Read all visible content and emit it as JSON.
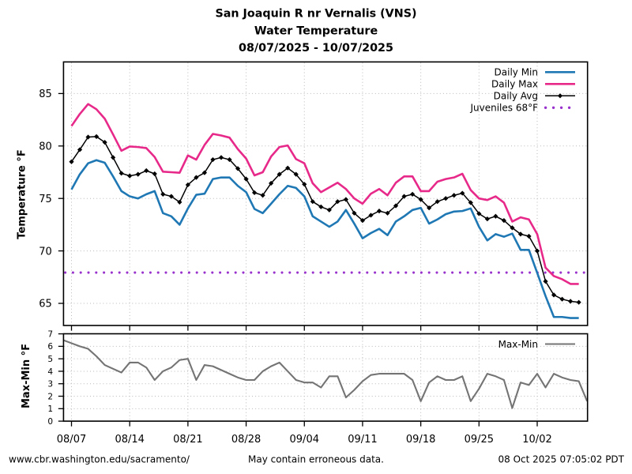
{
  "title": {
    "line1": "San Joaquin R nr Vernalis (VNS)",
    "line2": "Water Temperature",
    "line3": "08/07/2025 - 10/07/2025"
  },
  "footer": {
    "left": "www.cbr.washington.edu/sacramento/",
    "center": "May contain erroneous data.",
    "right": "08 Oct 2025 07:05:02 PDT"
  },
  "colors": {
    "daily_min": "#1f78b4",
    "daily_max": "#e7298a",
    "daily_avg": "#000000",
    "juveniles": "#9932cc",
    "max_min": "#747474",
    "grid": "#b9b9b9",
    "frame": "#000000",
    "footer_side": "#4f6570"
  },
  "chart_data": [
    {
      "type": "line",
      "title": "Water Temperature main panel",
      "ylabel": "Temperature °F",
      "ylim": [
        63,
        88
      ],
      "yticks": [
        65,
        70,
        75,
        80,
        85
      ],
      "xlim_days": [
        -0.97,
        62.05
      ],
      "x_tick_days": [
        0,
        7,
        14,
        21,
        28,
        35,
        42,
        49,
        56
      ],
      "x_tick_labels": [
        "08/07",
        "08/14",
        "08/21",
        "08/28",
        "09/04",
        "09/11",
        "09/18",
        "09/25",
        "10/02"
      ],
      "grid": true,
      "legend_position": "top-right",
      "dates": [
        "08/07",
        "08/08",
        "08/09",
        "08/10",
        "08/11",
        "08/12",
        "08/13",
        "08/14",
        "08/15",
        "08/16",
        "08/17",
        "08/18",
        "08/19",
        "08/20",
        "08/21",
        "08/22",
        "08/23",
        "08/24",
        "08/25",
        "08/26",
        "08/27",
        "08/28",
        "08/29",
        "08/30",
        "08/31",
        "09/01",
        "09/02",
        "09/03",
        "09/04",
        "09/05",
        "09/06",
        "09/07",
        "09/08",
        "09/09",
        "09/10",
        "09/11",
        "09/12",
        "09/13",
        "09/14",
        "09/15",
        "09/16",
        "09/17",
        "09/18",
        "09/19",
        "09/20",
        "09/21",
        "09/22",
        "09/23",
        "09/24",
        "09/25",
        "09/26",
        "09/27",
        "09/28",
        "09/29",
        "09/30",
        "10/01",
        "10/02",
        "10/03",
        "10/04",
        "10/05",
        "10/06",
        "10/07"
      ],
      "series": [
        {
          "name": "Daily Min",
          "values": [
            75.85,
            77.3,
            78.35,
            78.65,
            78.4,
            77.1,
            75.7,
            75.2,
            75.0,
            75.4,
            75.7,
            73.6,
            73.3,
            72.5,
            74.05,
            75.35,
            75.45,
            76.85,
            77.0,
            77.0,
            76.2,
            75.6,
            74.0,
            73.6,
            74.5,
            75.4,
            76.2,
            76.0,
            75.2,
            73.3,
            72.8,
            72.3,
            72.8,
            73.9,
            72.6,
            71.2,
            71.7,
            72.1,
            71.5,
            72.8,
            73.3,
            73.9,
            74.1,
            72.6,
            73.0,
            73.5,
            73.75,
            73.8,
            74.05,
            72.3,
            71.0,
            71.6,
            71.35,
            71.65,
            70.1,
            70.1,
            67.9,
            65.7,
            63.7,
            63.7,
            63.6,
            63.6
          ]
        },
        {
          "name": "Daily Max",
          "values": [
            81.9,
            83.05,
            84.0,
            83.5,
            82.6,
            81.1,
            79.55,
            79.95,
            79.9,
            79.8,
            78.95,
            77.55,
            77.5,
            77.45,
            79.1,
            78.7,
            80.1,
            81.15,
            81.0,
            80.8,
            79.7,
            78.8,
            77.2,
            77.5,
            79.0,
            79.9,
            80.05,
            78.75,
            78.35,
            76.45,
            75.6,
            76.05,
            76.5,
            75.9,
            75.0,
            74.5,
            75.45,
            75.9,
            75.3,
            76.5,
            77.1,
            77.1,
            75.7,
            75.7,
            76.6,
            76.85,
            77.0,
            77.35,
            75.8,
            75.0,
            74.85,
            75.2,
            74.6,
            72.8,
            73.2,
            73.0,
            71.6,
            68.4,
            67.6,
            67.3,
            66.85,
            66.85
          ]
        },
        {
          "name": "Daily Avg",
          "values": [
            78.5,
            79.65,
            80.85,
            80.9,
            80.35,
            78.9,
            77.4,
            77.15,
            77.3,
            77.65,
            77.35,
            75.4,
            75.2,
            74.65,
            76.3,
            77.0,
            77.45,
            78.7,
            78.9,
            78.7,
            77.85,
            76.85,
            75.55,
            75.3,
            76.45,
            77.3,
            77.9,
            77.3,
            76.35,
            74.7,
            74.2,
            73.9,
            74.7,
            74.9,
            73.6,
            72.9,
            73.4,
            73.8,
            73.6,
            74.3,
            75.2,
            75.4,
            74.9,
            74.1,
            74.7,
            75.0,
            75.3,
            75.5,
            74.6,
            73.55,
            73.05,
            73.3,
            72.9,
            72.2,
            71.6,
            71.4,
            70.0,
            67.1,
            65.8,
            65.4,
            65.2,
            65.1
          ]
        }
      ],
      "threshold": {
        "name": "Juveniles 68°F",
        "value": 68
      },
      "legend_entries": [
        "Daily Min",
        "Daily Max",
        "Daily Avg",
        "Juveniles 68°F"
      ]
    },
    {
      "type": "line",
      "title": "Max-Min panel",
      "ylabel": "Max-Min °F",
      "ylim": [
        0,
        7
      ],
      "yticks": [
        0,
        1,
        2,
        3,
        4,
        5,
        6,
        7
      ],
      "xlim_days": [
        -0.97,
        62.05
      ],
      "grid": true,
      "legend_position": "top-right",
      "series": [
        {
          "name": "Max-Min",
          "start_day": -1,
          "values": [
            6.5,
            6.25,
            6.0,
            5.8,
            5.2,
            4.5,
            4.2,
            3.9,
            4.7,
            4.7,
            4.3,
            3.3,
            4.0,
            4.3,
            4.9,
            5.0,
            3.3,
            4.5,
            4.4,
            4.1,
            3.8,
            3.5,
            3.3,
            3.3,
            4.0,
            4.4,
            4.7,
            4.0,
            3.3,
            3.1,
            3.1,
            2.7,
            3.6,
            3.6,
            1.9,
            2.5,
            3.2,
            3.7,
            3.8,
            3.8,
            3.8,
            3.8,
            3.3,
            1.6,
            3.1,
            3.6,
            3.3,
            3.3,
            3.6,
            1.6,
            2.6,
            3.8,
            3.6,
            3.3,
            1.05,
            3.1,
            2.9,
            3.8,
            2.7,
            3.8,
            3.5,
            3.3,
            3.2,
            1.6
          ]
        }
      ],
      "legend_entries": [
        "Max-Min"
      ]
    }
  ]
}
